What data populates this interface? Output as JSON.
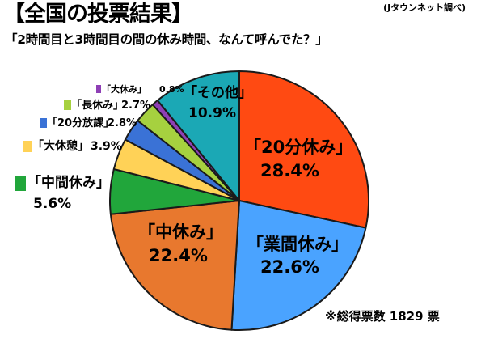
{
  "header": {
    "title": "【全国の投票結果】",
    "source": "(Jタウンネット調べ)",
    "question": "「2時間目と3時間目の間の休み時間、なんて呼んでた？」",
    "footnote": "※総得票数 1829 票"
  },
  "chart_data": {
    "type": "pie",
    "title": "「2時間目と3時間目の間の休み時間、なんて呼んでた？」",
    "start": "12 o'clock, clockwise",
    "slices": [
      {
        "label": "「20分休み」",
        "value": 28.4,
        "value_label": "28.4%",
        "color": "#ff4a12"
      },
      {
        "label": "「業間休み」",
        "value": 22.6,
        "value_label": "22.6%",
        "color": "#4aa3ff"
      },
      {
        "label": "「中休み」",
        "value": 22.4,
        "value_label": "22.4%",
        "color": "#e8782e"
      },
      {
        "label": "「中間休み」",
        "value": 5.6,
        "value_label": "5.6%",
        "color": "#21a63b"
      },
      {
        "label": "「大休憩」",
        "value": 3.9,
        "value_label": "3.9%",
        "color": "#ffd257"
      },
      {
        "label": "「20分放課」",
        "value": 2.8,
        "value_label": "2.8%",
        "color": "#3a72d6"
      },
      {
        "label": "「長休み」",
        "value": 2.7,
        "value_label": "2.7%",
        "color": "#a6d13f"
      },
      {
        "label": "「大休み」",
        "value": 0.8,
        "value_label": "0.8%",
        "color": "#8e3fb5"
      },
      {
        "label": "「その他」",
        "value": 10.9,
        "value_label": "10.9%",
        "color": "#1ba8b5"
      }
    ],
    "total_votes": 1829
  }
}
